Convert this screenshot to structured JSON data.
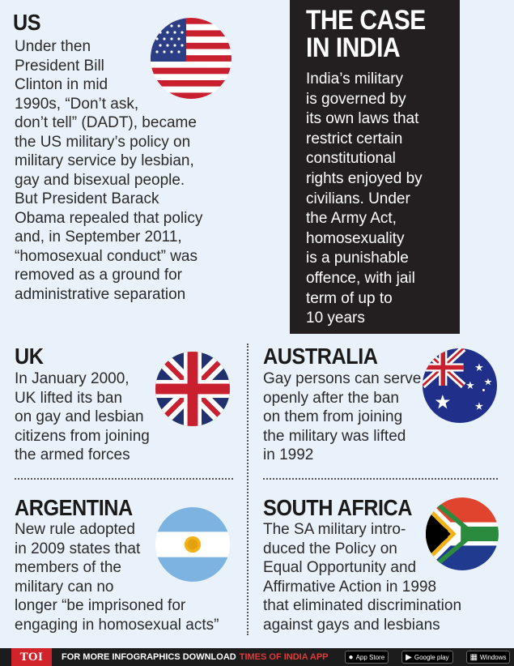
{
  "us": {
    "heading": "US",
    "lines": [
      "Under then",
      "President Bill",
      "Clinton in mid",
      "1990s, “Don’t ask,",
      "don’t tell” (DADT), became",
      "the US military’s policy on",
      "military service by lesbian,",
      "gay and bisexual people.",
      "But President Barack",
      "Obama repealed that policy",
      "and, in September 2011,",
      "“homosexual conduct” was",
      "removed as a ground for",
      "administrative separation"
    ],
    "flag_icon": "us-flag-icon"
  },
  "india": {
    "title_line1": "THE CASE",
    "title_line2": "IN INDIA",
    "lines": [
      "India’s military",
      "is governed by",
      "its own laws that",
      "restrict certain",
      "constitutional",
      "rights enjoyed by",
      "civilians. Under",
      "the Army Act,",
      "homosexuality",
      "is a punishable",
      "offence, with jail",
      "term of up to",
      "10 years"
    ]
  },
  "uk": {
    "heading": "UK",
    "lines": [
      "In January 2000,",
      "UK lifted its ban",
      "on gay and lesbian",
      "citizens from joining",
      "the armed forces"
    ],
    "flag_icon": "uk-flag-icon"
  },
  "australia": {
    "heading": "AUSTRALIA",
    "lines": [
      "Gay persons can serve",
      "openly after the ban",
      "on them from joining",
      "the military was lifted",
      "in 1992"
    ],
    "flag_icon": "australia-flag-icon"
  },
  "argentina": {
    "heading": "ARGENTINA",
    "lines": [
      "New rule adopted",
      "in 2009 states that",
      "members of the",
      "military can no",
      "longer “be imprisoned for",
      "engaging in homosexual acts”"
    ],
    "flag_icon": "argentina-flag-icon"
  },
  "south_africa": {
    "heading": "SOUTH AFRICA",
    "lines": [
      "The SA military intro-",
      "duced the Policy on",
      "Equal Opportunity and",
      "Affirmative Action in 1998",
      "that eliminated discrimination",
      "against gays and lesbians"
    ],
    "flag_icon": "south-africa-flag-icon"
  },
  "footer": {
    "logo": "TOI",
    "text": "FOR MORE  INFOGRAPHICS DOWNLOAD",
    "app_name": "TIMES OF INDIA APP",
    "badge_appstore_small": "Available on the",
    "badge_appstore": "App Store",
    "badge_googleplay": "Google play",
    "badge_windows_line1": "Windows",
    "badge_windows_line2": "Phone"
  },
  "colors": {
    "background": "#e9f2fa",
    "india_box": "#231f20",
    "toi_red": "#d1232a",
    "app_red": "#e03a3a"
  }
}
